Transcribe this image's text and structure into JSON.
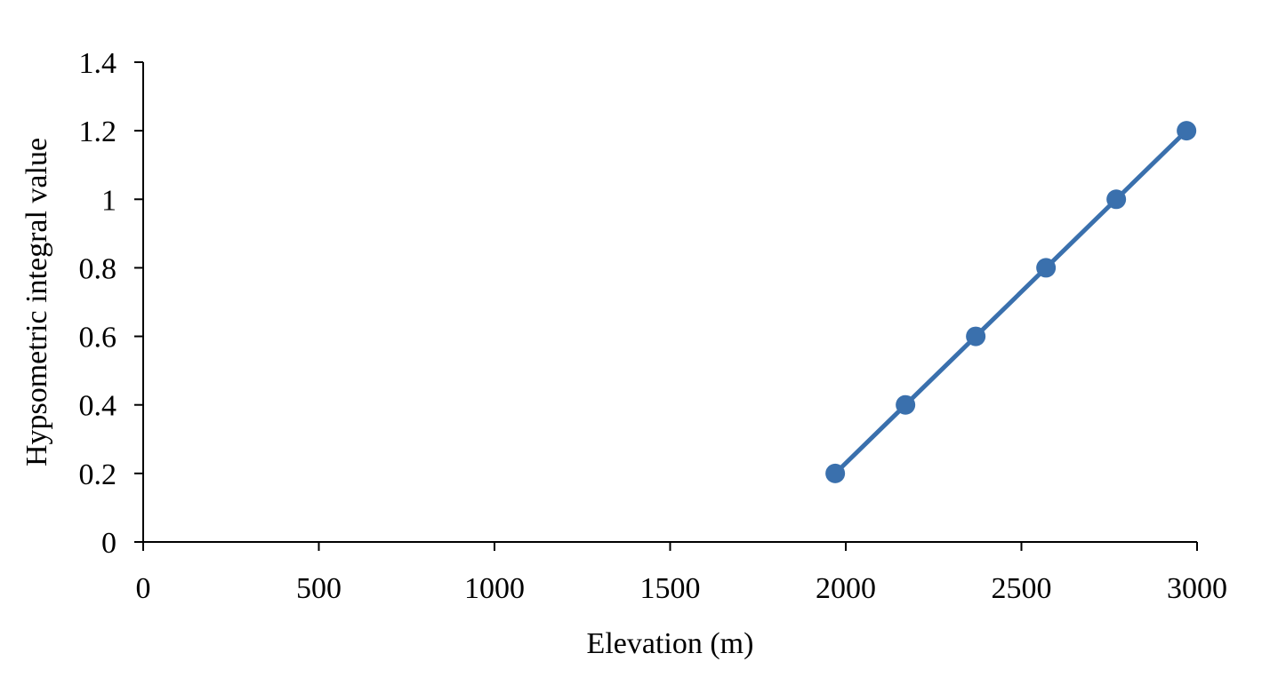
{
  "chart_data": {
    "type": "line",
    "title": "",
    "xlabel": "Elevation (m)",
    "ylabel": "Hypsometric integral value",
    "xlim": [
      0,
      3000
    ],
    "ylim": [
      0,
      1.4
    ],
    "x_ticks": [
      "0",
      "500",
      "1000",
      "1500",
      "2000",
      "2500",
      "3000"
    ],
    "y_ticks": [
      "0",
      "0.2",
      "0.4",
      "0.6",
      "0.8",
      "1",
      "1.2",
      "1.4"
    ],
    "grid": false,
    "legend": "none",
    "series": [
      {
        "color": "#3A70AD",
        "marker": "circle",
        "points": [
          {
            "x": 1970,
            "y": 0.2
          },
          {
            "x": 2170,
            "y": 0.4
          },
          {
            "x": 2370,
            "y": 0.6
          },
          {
            "x": 2570,
            "y": 0.8
          },
          {
            "x": 2770,
            "y": 1.0
          },
          {
            "x": 2970,
            "y": 1.2
          }
        ]
      }
    ]
  }
}
